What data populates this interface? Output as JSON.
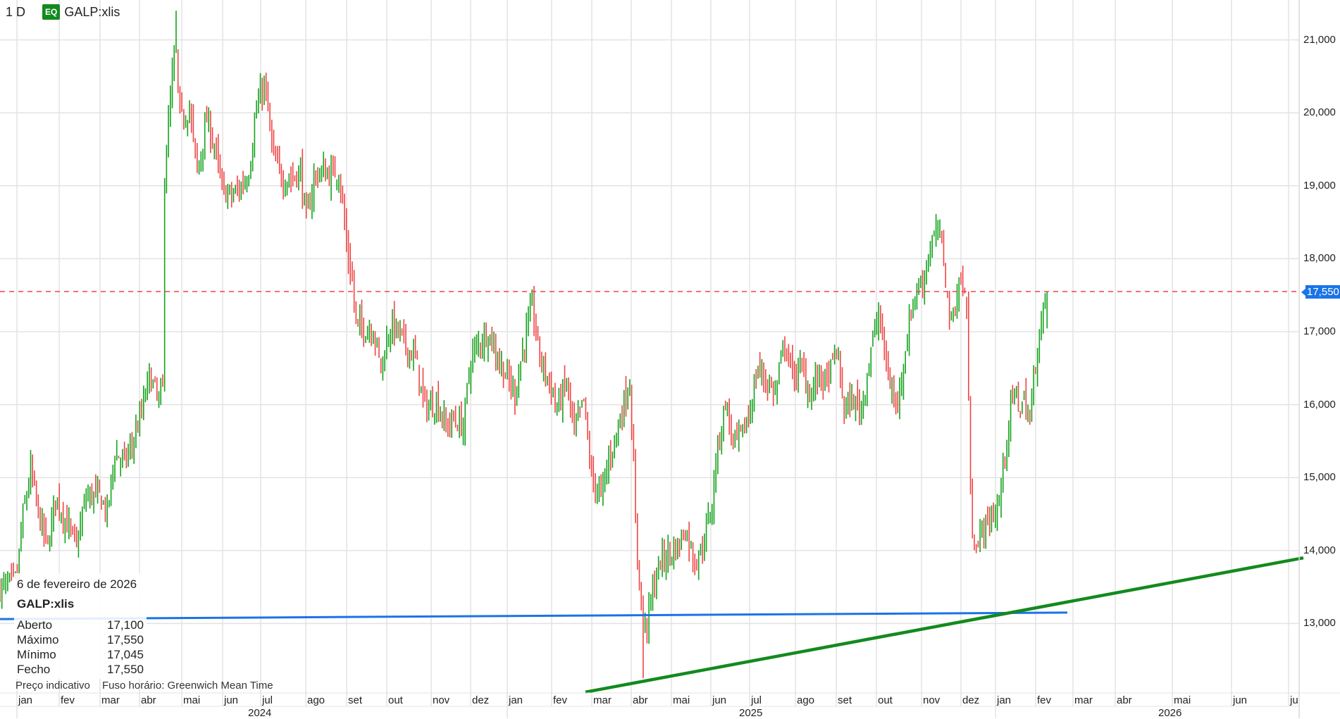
{
  "header": {
    "interval": "1 D",
    "badge": "EQ",
    "symbol": "GALP:xlis"
  },
  "tooltip": {
    "date": "6 de fevereiro de 2026",
    "symbol": "GALP:xlis",
    "rows": [
      {
        "label": "Aberto",
        "value": "17,100"
      },
      {
        "label": "Máximo",
        "value": "17,550"
      },
      {
        "label": "Mínimo",
        "value": "17,045"
      },
      {
        "label": "Fecho",
        "value": "17,550"
      }
    ]
  },
  "footer": {
    "price_note": "Preço indicativo",
    "timezone": "Fuso horário: Greenwich Mean Time"
  },
  "price_tag": "17,550",
  "colors": {
    "up": "#13a31b",
    "down": "#ef4444",
    "last_price_line": "#ef4444",
    "hline": "#1a73e8",
    "trendline": "#138a1e",
    "grid": "#e3e3e3"
  },
  "chart_data": {
    "type": "bar",
    "style": "ohlc",
    "symbol": "GALP:xlis",
    "interval": "1 D",
    "ylim": [
      12000,
      21500
    ],
    "y_ticks": [
      "13,000",
      "14,000",
      "15,000",
      "16,000",
      "17,000",
      "18,000",
      "19,000",
      "20,000",
      "21,000"
    ],
    "y_tick_values": [
      13000,
      14000,
      15000,
      16000,
      17000,
      18000,
      19000,
      20000,
      21000
    ],
    "x_month_labels": [
      "jan",
      "fev",
      "mar",
      "abr",
      "mai",
      "jun",
      "jul",
      "ago",
      "set",
      "out",
      "nov",
      "dez",
      "jan",
      "fev",
      "mar",
      "abr",
      "mai",
      "jun",
      "jul",
      "ago",
      "set",
      "out",
      "nov",
      "dez",
      "jan",
      "fev",
      "mar",
      "abr",
      "mai",
      "jun",
      "ju"
    ],
    "x_year_labels": [
      "2024",
      "2025",
      "2026"
    ],
    "last_price": 17550,
    "last_bar": {
      "open": 17100,
      "high": 17550,
      "low": 17045,
      "close": 17550
    },
    "approx_close_path": [
      [
        0,
        13480
      ],
      [
        9,
        13600
      ],
      [
        11,
        14300
      ],
      [
        16,
        15100
      ],
      [
        20,
        14500
      ],
      [
        25,
        14050
      ],
      [
        29,
        14750
      ],
      [
        36,
        14300
      ],
      [
        40,
        14050
      ],
      [
        45,
        14750
      ],
      [
        52,
        14750
      ],
      [
        56,
        14500
      ],
      [
        60,
        15350
      ],
      [
        65,
        15200
      ],
      [
        69,
        15450
      ],
      [
        74,
        15900
      ],
      [
        78,
        16400
      ],
      [
        83,
        16050
      ],
      [
        85,
        16200
      ],
      [
        86,
        19200
      ],
      [
        90,
        20500
      ],
      [
        92,
        20850
      ],
      [
        94,
        19900
      ],
      [
        99,
        20050
      ],
      [
        103,
        19200
      ],
      [
        108,
        19900
      ],
      [
        112,
        19550
      ],
      [
        116,
        18950
      ],
      [
        121,
        18850
      ],
      [
        125,
        18950
      ],
      [
        130,
        19200
      ],
      [
        134,
        20050
      ],
      [
        138,
        20400
      ],
      [
        141,
        19800
      ],
      [
        143,
        19350
      ],
      [
        148,
        19100
      ],
      [
        152,
        19100
      ],
      [
        157,
        19200
      ],
      [
        160,
        18500
      ],
      [
        164,
        19100
      ],
      [
        168,
        19200
      ],
      [
        172,
        19150
      ],
      [
        177,
        19200
      ],
      [
        179,
        18750
      ],
      [
        181,
        18150
      ],
      [
        184,
        17700
      ],
      [
        186,
        17100
      ],
      [
        190,
        17050
      ],
      [
        195,
        17050
      ],
      [
        199,
        16500
      ],
      [
        204,
        17100
      ],
      [
        208,
        17000
      ],
      [
        213,
        16750
      ],
      [
        217,
        16650
      ],
      [
        221,
        16050
      ],
      [
        224,
        15950
      ],
      [
        228,
        16050
      ],
      [
        233,
        15700
      ],
      [
        237,
        15800
      ],
      [
        242,
        15700
      ],
      [
        246,
        16650
      ],
      [
        251,
        16870
      ],
      [
        255,
        17000
      ],
      [
        260,
        16650
      ],
      [
        264,
        16400
      ],
      [
        269,
        16150
      ],
      [
        273,
        16750
      ],
      [
        278,
        17350
      ],
      [
        282,
        16650
      ],
      [
        287,
        16300
      ],
      [
        291,
        15950
      ],
      [
        296,
        16300
      ],
      [
        300,
        15600
      ],
      [
        305,
        16050
      ],
      [
        309,
        15000
      ],
      [
        314,
        14750
      ],
      [
        318,
        15250
      ],
      [
        323,
        15700
      ],
      [
        327,
        16150
      ],
      [
        329,
        16300
      ],
      [
        331,
        15100
      ],
      [
        332,
        14300
      ],
      [
        334,
        13600
      ],
      [
        336,
        13000
      ],
      [
        338,
        13000
      ],
      [
        340,
        13350
      ],
      [
        345,
        13850
      ],
      [
        349,
        13950
      ],
      [
        354,
        14050
      ],
      [
        358,
        14300
      ],
      [
        363,
        13850
      ],
      [
        367,
        14050
      ],
      [
        372,
        14650
      ],
      [
        374,
        15250
      ],
      [
        379,
        16050
      ],
      [
        383,
        15450
      ],
      [
        388,
        15600
      ],
      [
        392,
        15950
      ],
      [
        396,
        16500
      ],
      [
        401,
        16300
      ],
      [
        405,
        16150
      ],
      [
        410,
        16850
      ],
      [
        414,
        16400
      ],
      [
        419,
        16500
      ],
      [
        423,
        16150
      ],
      [
        428,
        16400
      ],
      [
        432,
        16300
      ],
      [
        437,
        16750
      ],
      [
        441,
        15950
      ],
      [
        446,
        16050
      ],
      [
        450,
        15950
      ],
      [
        455,
        16750
      ],
      [
        459,
        17250
      ],
      [
        464,
        16400
      ],
      [
        468,
        15950
      ],
      [
        473,
        16750
      ],
      [
        477,
        17450
      ],
      [
        482,
        17700
      ],
      [
        486,
        18150
      ],
      [
        490,
        18400
      ],
      [
        493,
        18050
      ],
      [
        495,
        17450
      ],
      [
        497,
        17100
      ],
      [
        500,
        17550
      ],
      [
        502,
        17700
      ],
      [
        504,
        17500
      ],
      [
        505,
        17350
      ],
      [
        507,
        14750
      ],
      [
        508,
        14300
      ],
      [
        511,
        14050
      ],
      [
        513,
        14300
      ],
      [
        517,
        14400
      ],
      [
        522,
        14650
      ],
      [
        524,
        15100
      ],
      [
        526,
        15600
      ],
      [
        529,
        16050
      ],
      [
        531,
        16150
      ],
      [
        533,
        15950
      ],
      [
        535,
        16050
      ],
      [
        538,
        15800
      ],
      [
        540,
        16300
      ],
      [
        542,
        16850
      ],
      [
        544,
        17100
      ],
      [
        547,
        17550
      ]
    ],
    "extremes": [
      {
        "day": 92,
        "high": 21400
      },
      {
        "day": 336,
        "low": 12250
      }
    ],
    "horizontal_line": {
      "from_day": 0,
      "to_date": "fev 2026",
      "value_start": 13060,
      "value_end": 13150
    },
    "trendline": {
      "start": {
        "date": "mar 2025",
        "value": 12060
      },
      "end": {
        "date": "jul 2026",
        "value": 13900
      }
    },
    "grid": true
  }
}
